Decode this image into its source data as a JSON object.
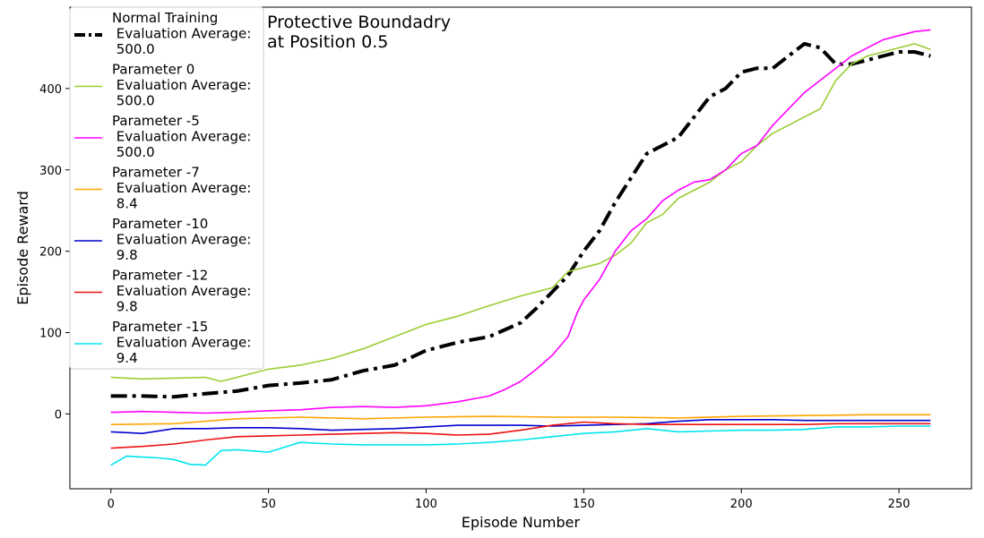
{
  "chart_data": {
    "type": "line",
    "title_lines": [
      "Protective Boundadry",
      "at Position 0.5"
    ],
    "xlabel": "Episode Number",
    "ylabel": "Episode Reward",
    "xlim": [
      -13,
      273
    ],
    "ylim": [
      -92,
      500
    ],
    "xticks": [
      0,
      50,
      100,
      150,
      200,
      250
    ],
    "yticks": [
      0,
      100,
      200,
      300,
      400
    ],
    "grid": false,
    "legend_position": "top-left",
    "series": [
      {
        "name_lines": [
          "Normal Training",
          " Evaluation Average:",
          " 500.0"
        ],
        "color": "#000000",
        "style": "dashdot",
        "x": [
          0,
          10,
          20,
          30,
          40,
          50,
          60,
          70,
          80,
          90,
          100,
          110,
          120,
          130,
          135,
          140,
          145,
          150,
          155,
          160,
          165,
          170,
          175,
          180,
          185,
          190,
          195,
          200,
          205,
          210,
          215,
          220,
          225,
          230,
          235,
          240,
          245,
          250,
          255,
          260
        ],
        "values": [
          22,
          22,
          21,
          25,
          28,
          35,
          38,
          42,
          53,
          60,
          78,
          88,
          95,
          112,
          130,
          150,
          170,
          200,
          225,
          260,
          290,
          320,
          330,
          340,
          365,
          390,
          400,
          420,
          425,
          425,
          440,
          455,
          450,
          430,
          430,
          435,
          440,
          445,
          445,
          440
        ]
      },
      {
        "name_lines": [
          "Parameter 0",
          " Evaluation Average:",
          " 500.0"
        ],
        "color": "#9acd32",
        "style": "solid",
        "x": [
          0,
          10,
          20,
          30,
          35,
          40,
          50,
          60,
          70,
          80,
          90,
          100,
          110,
          120,
          130,
          140,
          145,
          150,
          155,
          160,
          165,
          170,
          175,
          180,
          185,
          190,
          195,
          200,
          205,
          210,
          215,
          220,
          225,
          230,
          235,
          240,
          245,
          250,
          255,
          260
        ],
        "values": [
          45,
          43,
          44,
          45,
          40,
          45,
          55,
          60,
          68,
          80,
          95,
          110,
          120,
          133,
          145,
          155,
          175,
          180,
          185,
          195,
          210,
          235,
          245,
          265,
          275,
          285,
          300,
          310,
          330,
          345,
          355,
          365,
          375,
          410,
          430,
          440,
          445,
          450,
          455,
          448
        ]
      },
      {
        "name_lines": [
          "Parameter -5",
          " Evaluation Average:",
          " 500.0"
        ],
        "color": "#ff00ff",
        "style": "solid",
        "x": [
          0,
          10,
          20,
          30,
          40,
          50,
          60,
          70,
          80,
          90,
          100,
          110,
          120,
          125,
          130,
          135,
          140,
          145,
          148,
          150,
          155,
          160,
          165,
          170,
          175,
          180,
          185,
          190,
          195,
          200,
          205,
          210,
          215,
          220,
          225,
          230,
          235,
          240,
          245,
          250,
          255,
          260
        ],
        "values": [
          2,
          3,
          2,
          1,
          2,
          4,
          5,
          8,
          9,
          8,
          10,
          15,
          22,
          30,
          40,
          55,
          72,
          95,
          125,
          140,
          165,
          200,
          225,
          240,
          262,
          275,
          285,
          288,
          300,
          320,
          330,
          355,
          375,
          395,
          410,
          425,
          440,
          450,
          460,
          465,
          470,
          472
        ]
      },
      {
        "name_lines": [
          "Parameter -7",
          " Evaluation Average:",
          " 8.4"
        ],
        "color": "#ffa500",
        "style": "solid",
        "x": [
          0,
          20,
          40,
          60,
          80,
          100,
          120,
          140,
          160,
          180,
          200,
          220,
          240,
          260
        ],
        "values": [
          -13,
          -12,
          -6,
          -4,
          -6,
          -4,
          -3,
          -4,
          -4,
          -5,
          -3,
          -2,
          -1,
          -1
        ]
      },
      {
        "name_lines": [
          "Parameter -10",
          " Evaluation Average:",
          " 9.8"
        ],
        "color": "#0000cd",
        "style": "solid",
        "x": [
          0,
          10,
          20,
          30,
          40,
          50,
          60,
          70,
          80,
          90,
          100,
          110,
          120,
          130,
          140,
          150,
          160,
          170,
          180,
          190,
          200,
          210,
          220,
          230,
          240,
          250,
          260
        ],
        "values": [
          -22,
          -24,
          -18,
          -18,
          -17,
          -17,
          -18,
          -20,
          -19,
          -18,
          -16,
          -14,
          -14,
          -14,
          -15,
          -14,
          -13,
          -12,
          -9,
          -7,
          -7,
          -7,
          -8,
          -8,
          -8,
          -8,
          -8
        ]
      },
      {
        "name_lines": [
          "Parameter -12",
          " Evaluation Average:",
          " 9.8"
        ],
        "color": "#ee1111",
        "style": "solid",
        "x": [
          0,
          10,
          20,
          30,
          40,
          50,
          60,
          70,
          80,
          90,
          100,
          110,
          120,
          130,
          140,
          150,
          160,
          170,
          180,
          190,
          200,
          210,
          220,
          230,
          240,
          250,
          260
        ],
        "values": [
          -42,
          -40,
          -37,
          -32,
          -28,
          -27,
          -26,
          -25,
          -24,
          -23,
          -24,
          -26,
          -25,
          -20,
          -14,
          -10,
          -12,
          -13,
          -13,
          -13,
          -13,
          -13,
          -13,
          -12,
          -12,
          -12,
          -12
        ]
      },
      {
        "name_lines": [
          "Parameter -15",
          " Evaluation Average:",
          " 9.4"
        ],
        "color": "#00e5ee",
        "style": "solid",
        "x": [
          0,
          5,
          10,
          15,
          20,
          25,
          30,
          35,
          40,
          50,
          60,
          70,
          80,
          90,
          100,
          110,
          120,
          130,
          140,
          150,
          160,
          170,
          180,
          190,
          200,
          210,
          220,
          230,
          240,
          250,
          260
        ],
        "values": [
          -63,
          -52,
          -53,
          -54,
          -56,
          -62,
          -63,
          -45,
          -44,
          -47,
          -35,
          -37,
          -38,
          -38,
          -38,
          -37,
          -35,
          -32,
          -28,
          -24,
          -22,
          -18,
          -22,
          -21,
          -20,
          -20,
          -19,
          -16,
          -16,
          -15,
          -15
        ]
      }
    ]
  }
}
